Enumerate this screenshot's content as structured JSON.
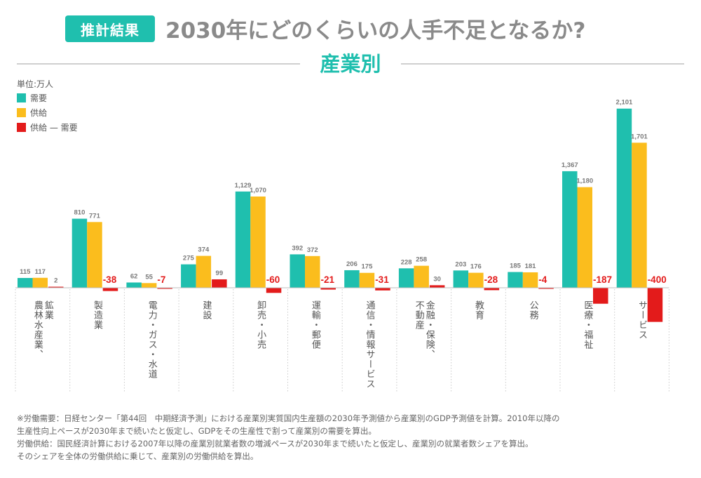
{
  "header": {
    "badge": "推計結果",
    "title": "2030年にどのくらいの人手不足となるか?",
    "subtitle": "産業別"
  },
  "legend": {
    "unit": "単位:万人",
    "items": [
      "需要",
      "供給",
      "供給 — 需要"
    ]
  },
  "colors": {
    "demand": "#1fbfae",
    "supply": "#fbbd1d",
    "gap": "#e31b1b",
    "gapLabel": "#e31b1b",
    "valueLabel": "#7a7a7a"
  },
  "chart_data": {
    "type": "bar",
    "unit": "万人",
    "categories": [
      "鉱業\n農林水産業、",
      "製造業",
      "電力・ガス・水道",
      "建設",
      "卸売・小売",
      "運輸・郵便",
      "通信・情報サービス",
      "金融・保険、\n不動産",
      "教育",
      "公務",
      "医療・福祉",
      "サービス"
    ],
    "series": [
      {
        "name": "需要",
        "values": [
          115,
          810,
          62,
          275,
          1129,
          392,
          206,
          228,
          203,
          185,
          1367,
          2101
        ]
      },
      {
        "name": "供給",
        "values": [
          117,
          771,
          55,
          374,
          1070,
          372,
          175,
          258,
          176,
          181,
          1180,
          1701
        ]
      },
      {
        "name": "供給 — 需要",
        "values": [
          2,
          -38,
          -7,
          99,
          -60,
          -21,
          -31,
          30,
          -28,
          -4,
          -187,
          -400
        ]
      }
    ],
    "value_labels": {
      "demand": [
        "115",
        "810",
        "62",
        "275",
        "1,129",
        "392",
        "206",
        "228",
        "203",
        "185",
        "1,367",
        "2,101"
      ],
      "supply": [
        "117",
        "771",
        "55",
        "374",
        "1,070",
        "372",
        "175",
        "258",
        "176",
        "181",
        "1,180",
        "1,701"
      ],
      "gap": [
        "2",
        "-38",
        "-7",
        "99",
        "-60",
        "-21",
        "-31",
        "30",
        "-28",
        "-4",
        "-187",
        "-400"
      ]
    },
    "ylim": [
      -400,
      2101
    ]
  },
  "footnote": [
    "※労働需要：日経センター「第44回　中期経済予測」における産業別実質国内生産額の2030年予測値から産業別のGDP予測値を計算。2010年以降の",
    "生産性向上ペースが2030年まで続いたと仮定し、GDPをその生産性で割って産業別の需要を算出。",
    "労働供給：国民経済計算における2007年以降の産業別就業者数の増減ペースが2030年まで続いたと仮定し、産業別の就業者数シェアを算出。",
    "そのシェアを全体の労働供給に乗じて、産業別の労働供給を算出。"
  ]
}
